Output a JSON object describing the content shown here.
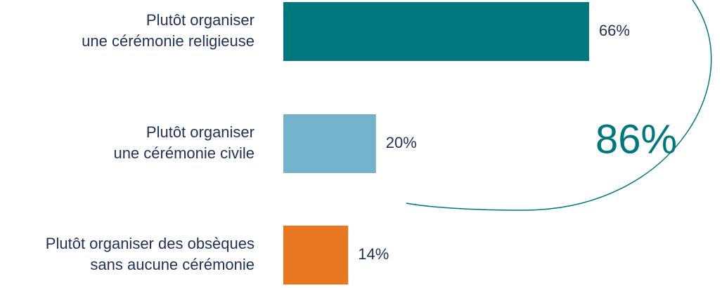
{
  "chart_data": {
    "type": "barh",
    "categories": [
      [
        "Plutôt organiser",
        "une cérémonie religieuse"
      ],
      [
        "Plutôt organiser",
        "une cérémonie civile"
      ],
      [
        "Plutôt organiser des obsèques",
        "sans aucune cérémonie"
      ]
    ],
    "values": [
      66,
      20,
      14
    ],
    "value_labels": [
      "66%",
      "20%",
      "14%"
    ],
    "colors": [
      "#00767d",
      "#74b3cb",
      "#e87722"
    ],
    "xlim": [
      0,
      100
    ],
    "annotation": "86%"
  }
}
